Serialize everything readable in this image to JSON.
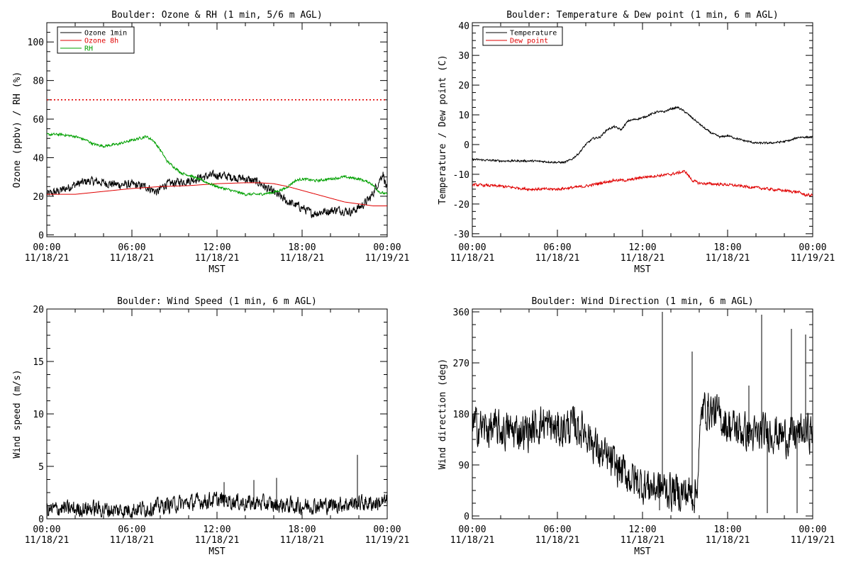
{
  "charts": [
    {
      "id": "ozone",
      "type": "line",
      "title": "Boulder: Ozone & RH (1 min, 5/6 m AGL)",
      "ylabel": "Ozone (ppbv) / RH (%)",
      "xlabel": "MST",
      "xlim": [
        0,
        24
      ],
      "ylim": [
        -1,
        110
      ],
      "yticks": [
        0,
        20,
        40,
        60,
        80,
        100
      ],
      "xticks": [
        {
          "h": 0,
          "time": "00:00",
          "date": "11/18/21"
        },
        {
          "h": 6,
          "time": "06:00",
          "date": "11/18/21"
        },
        {
          "h": 12,
          "time": "12:00",
          "date": "11/18/21"
        },
        {
          "h": 18,
          "time": "18:00",
          "date": "11/18/21"
        },
        {
          "h": 24,
          "time": "00:00",
          "date": "11/19/21"
        }
      ],
      "legend": {
        "position": "top-left",
        "entries": [
          {
            "name": "Ozone 1min",
            "color": "#000000"
          },
          {
            "name": "Ozone 8h",
            "color": "#e00000"
          },
          {
            "name": "RH",
            "color": "#00a000"
          }
        ]
      },
      "reference_line": {
        "y": 70,
        "color": "#e00000",
        "style": "dotted"
      },
      "series": [
        {
          "name": "Ozone 1min",
          "color": "#000000",
          "noise": 2.0,
          "points": [
            [
              0,
              21
            ],
            [
              1,
              23
            ],
            [
              2,
              26
            ],
            [
              3,
              28
            ],
            [
              4,
              27
            ],
            [
              5,
              26
            ],
            [
              6,
              26
            ],
            [
              7,
              25
            ],
            [
              7.8,
              22
            ],
            [
              8.3,
              26
            ],
            [
              9,
              27
            ],
            [
              10,
              28
            ],
            [
              11,
              30
            ],
            [
              12,
              31
            ],
            [
              13,
              30
            ],
            [
              14,
              29
            ],
            [
              15,
              27
            ],
            [
              15.5,
              24
            ],
            [
              16,
              22
            ],
            [
              17,
              17
            ],
            [
              18,
              14
            ],
            [
              18.7,
              11
            ],
            [
              19.5,
              12
            ],
            [
              20.5,
              13
            ],
            [
              21.5,
              12
            ],
            [
              22.2,
              15
            ],
            [
              22.8,
              19
            ],
            [
              23.3,
              26
            ],
            [
              23.7,
              32
            ],
            [
              24,
              23
            ]
          ]
        },
        {
          "name": "Ozone 8h",
          "color": "#e00000",
          "noise": 0,
          "points": [
            [
              0,
              21
            ],
            [
              2,
              21
            ],
            [
              4,
              22.5
            ],
            [
              6,
              24
            ],
            [
              8,
              25
            ],
            [
              10,
              25.5
            ],
            [
              12,
              26.5
            ],
            [
              14,
              27
            ],
            [
              15,
              27
            ],
            [
              16,
              26.5
            ],
            [
              17,
              25
            ],
            [
              18,
              23
            ],
            [
              19,
              21
            ],
            [
              20,
              19
            ],
            [
              21,
              17
            ],
            [
              22,
              16
            ],
            [
              23,
              15
            ],
            [
              24,
              15
            ]
          ]
        },
        {
          "name": "RH",
          "color": "#00a000",
          "noise": 0.6,
          "points": [
            [
              0,
              52
            ],
            [
              1,
              52
            ],
            [
              2,
              51
            ],
            [
              2.8,
              49
            ],
            [
              3.3,
              47
            ],
            [
              4,
              46
            ],
            [
              5,
              47
            ],
            [
              6,
              49
            ],
            [
              7,
              51
            ],
            [
              7.5,
              49
            ],
            [
              8,
              44
            ],
            [
              8.5,
              38
            ],
            [
              9,
              35
            ],
            [
              9.5,
              32
            ],
            [
              10,
              31
            ],
            [
              11,
              28
            ],
            [
              12,
              25
            ],
            [
              13,
              23
            ],
            [
              14,
              21
            ],
            [
              15,
              21
            ],
            [
              16,
              22
            ],
            [
              16.8,
              24
            ],
            [
              17.5,
              28
            ],
            [
              18,
              29
            ],
            [
              19,
              28
            ],
            [
              20,
              29
            ],
            [
              21,
              30
            ],
            [
              22,
              29
            ],
            [
              22.8,
              27
            ],
            [
              23.5,
              22
            ],
            [
              24,
              21
            ]
          ]
        }
      ]
    },
    {
      "id": "temp",
      "type": "line",
      "title": "Boulder: Temperature & Dew point (1 min, 6 m AGL)",
      "ylabel": "Temperature / Dew point (C)",
      "xlabel": "MST",
      "xlim": [
        0,
        24
      ],
      "ylim": [
        -31,
        41
      ],
      "yticks": [
        -30,
        -20,
        -10,
        0,
        10,
        20,
        30,
        40
      ],
      "xticks": [
        {
          "h": 0,
          "time": "00:00",
          "date": "11/18/21"
        },
        {
          "h": 6,
          "time": "06:00",
          "date": "11/18/21"
        },
        {
          "h": 12,
          "time": "12:00",
          "date": "11/18/21"
        },
        {
          "h": 18,
          "time": "18:00",
          "date": "11/18/21"
        },
        {
          "h": 24,
          "time": "00:00",
          "date": "11/19/21"
        }
      ],
      "legend": {
        "position": "top-left",
        "entries": [
          {
            "name": "Temperature",
            "color": "#000000"
          },
          {
            "name": "Dew point",
            "color": "#e00000"
          }
        ]
      },
      "series": [
        {
          "name": "Temperature",
          "color": "#000000",
          "noise": 0.3,
          "points": [
            [
              0,
              -5
            ],
            [
              2,
              -5.5
            ],
            [
              3,
              -5.5
            ],
            [
              4,
              -5.5
            ],
            [
              5,
              -5.7
            ],
            [
              6,
              -6
            ],
            [
              6.5,
              -6
            ],
            [
              7,
              -5
            ],
            [
              7.5,
              -3
            ],
            [
              8,
              0
            ],
            [
              8.5,
              2
            ],
            [
              9,
              2.5
            ],
            [
              9.5,
              5
            ],
            [
              10,
              6
            ],
            [
              10.5,
              5
            ],
            [
              11,
              8
            ],
            [
              12,
              9
            ],
            [
              12.5,
              10
            ],
            [
              13,
              11
            ],
            [
              13.5,
              11
            ],
            [
              14,
              12
            ],
            [
              14.5,
              12.5
            ],
            [
              15,
              11
            ],
            [
              15.5,
              9
            ],
            [
              16,
              7
            ],
            [
              16.5,
              5
            ],
            [
              17,
              3.5
            ],
            [
              17.5,
              2.5
            ],
            [
              18,
              3
            ],
            [
              19,
              1.5
            ],
            [
              20,
              0.5
            ],
            [
              21,
              0.5
            ],
            [
              22,
              1
            ],
            [
              22.5,
              1.5
            ],
            [
              23,
              2.5
            ],
            [
              24,
              2.5
            ]
          ]
        },
        {
          "name": "Dew point",
          "color": "#e00000",
          "noise": 0.4,
          "points": [
            [
              0,
              -13.5
            ],
            [
              2,
              -14
            ],
            [
              3,
              -14.5
            ],
            [
              4,
              -15
            ],
            [
              5,
              -15
            ],
            [
              6,
              -15
            ],
            [
              7,
              -14.5
            ],
            [
              8,
              -14
            ],
            [
              9,
              -13
            ],
            [
              10,
              -12
            ],
            [
              11,
              -12
            ],
            [
              12,
              -11
            ],
            [
              13,
              -10.5
            ],
            [
              14,
              -10
            ],
            [
              14.5,
              -9.5
            ],
            [
              15,
              -9
            ],
            [
              15.5,
              -12
            ],
            [
              16,
              -13
            ],
            [
              18,
              -13.5
            ],
            [
              19,
              -14
            ],
            [
              20,
              -14.5
            ],
            [
              21,
              -15
            ],
            [
              22,
              -15.5
            ],
            [
              23,
              -16
            ],
            [
              23.5,
              -17
            ],
            [
              24,
              -17
            ]
          ]
        }
      ]
    },
    {
      "id": "wspd",
      "type": "line",
      "title": "Boulder: Wind Speed (1 min, 6 m AGL)",
      "ylabel": "Wind speed (m/s)",
      "xlabel": "MST",
      "xlim": [
        0,
        24
      ],
      "ylim": [
        0,
        20
      ],
      "yticks": [
        0,
        5,
        10,
        15,
        20
      ],
      "xticks": [
        {
          "h": 0,
          "time": "00:00",
          "date": "11/18/21"
        },
        {
          "h": 6,
          "time": "06:00",
          "date": "11/18/21"
        },
        {
          "h": 12,
          "time": "12:00",
          "date": "11/18/21"
        },
        {
          "h": 18,
          "time": "18:00",
          "date": "11/18/21"
        },
        {
          "h": 24,
          "time": "00:00",
          "date": "11/19/21"
        }
      ],
      "series": [
        {
          "name": "Wind speed",
          "color": "#000000",
          "noise": 0.7,
          "floor": 0,
          "points": [
            [
              0,
              0.8
            ],
            [
              1,
              1
            ],
            [
              2,
              0.9
            ],
            [
              3,
              1
            ],
            [
              4,
              0.9
            ],
            [
              5,
              0.8
            ],
            [
              6,
              0.9
            ],
            [
              7,
              1
            ],
            [
              8,
              1.2
            ],
            [
              9,
              1.4
            ],
            [
              10,
              1.5
            ],
            [
              11,
              1.7
            ],
            [
              12,
              1.8
            ],
            [
              13,
              1.7
            ],
            [
              14,
              1.5
            ],
            [
              15,
              1.5
            ],
            [
              16,
              1.3
            ],
            [
              17,
              1.3
            ],
            [
              18,
              1.2
            ],
            [
              19,
              1.3
            ],
            [
              20,
              1.3
            ],
            [
              21,
              1.4
            ],
            [
              22,
              1.5
            ],
            [
              23,
              1.5
            ],
            [
              24,
              1.6
            ]
          ],
          "spikes": [
            [
              21.9,
              6.1
            ],
            [
              24,
              3.9
            ],
            [
              12.5,
              3.5
            ],
            [
              14.6,
              3.7
            ],
            [
              16.2,
              3.9
            ]
          ]
        }
      ]
    },
    {
      "id": "wdir",
      "type": "line",
      "title": "Boulder: Wind Direction (1 min, 6 m AGL)",
      "ylabel": "Wind direction (deg)",
      "xlabel": "MST",
      "xlim": [
        0,
        24
      ],
      "ylim": [
        -5,
        365
      ],
      "yticks": [
        0,
        90,
        180,
        270,
        360
      ],
      "xticks": [
        {
          "h": 0,
          "time": "00:00",
          "date": "11/18/21"
        },
        {
          "h": 6,
          "time": "06:00",
          "date": "11/18/21"
        },
        {
          "h": 12,
          "time": "12:00",
          "date": "11/18/21"
        },
        {
          "h": 18,
          "time": "18:00",
          "date": "11/18/21"
        },
        {
          "h": 24,
          "time": "00:00",
          "date": "11/19/21"
        }
      ],
      "series": [
        {
          "name": "Wind direction",
          "color": "#000000",
          "noise": 30,
          "floor": 0,
          "points": [
            [
              0,
              160
            ],
            [
              2,
              150
            ],
            [
              4,
              150
            ],
            [
              5,
              165
            ],
            [
              6,
              150
            ],
            [
              7,
              160
            ],
            [
              8,
              150
            ],
            [
              8.5,
              130
            ],
            [
              9,
              110
            ],
            [
              10,
              90
            ],
            [
              11,
              70
            ],
            [
              12,
              55
            ],
            [
              13,
              50
            ],
            [
              14,
              45
            ],
            [
              15,
              40
            ],
            [
              15.8,
              40
            ],
            [
              16.2,
              190
            ],
            [
              17,
              185
            ],
            [
              18,
              160
            ],
            [
              19,
              150
            ],
            [
              20,
              140
            ],
            [
              21,
              150
            ],
            [
              22,
              140
            ],
            [
              23,
              145
            ],
            [
              24,
              150
            ]
          ],
          "spikes": [
            [
              13.4,
              360
            ],
            [
              13.2,
              10
            ],
            [
              15.5,
              290
            ],
            [
              19.5,
              230
            ],
            [
              20.4,
              355
            ],
            [
              20.8,
              5
            ],
            [
              22.5,
              330
            ],
            [
              22.9,
              5
            ],
            [
              23.5,
              320
            ]
          ]
        }
      ]
    }
  ]
}
